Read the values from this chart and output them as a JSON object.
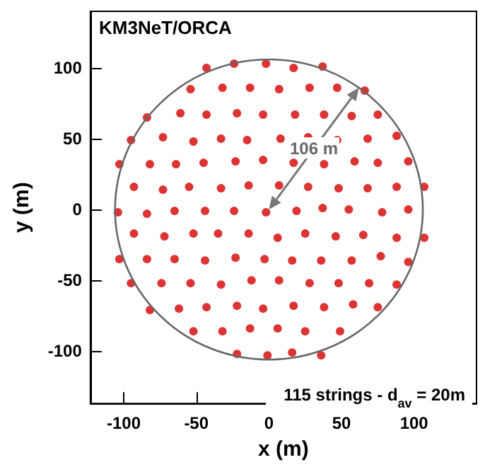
{
  "chart_data": {
    "type": "scatter",
    "title": "KM3NeT/ORCA",
    "xlabel": "x (m)",
    "ylabel": "y (m)",
    "annotations": [
      {
        "text": "106 m",
        "x": 31,
        "y": 43
      },
      "115 strings - d$_{av}$ = 20m"
    ],
    "x": [
      -43,
      -24,
      -2,
      17,
      37,
      -54,
      -32,
      -13,
      7,
      28,
      47,
      66,
      -84,
      -61,
      -43,
      -22,
      -4,
      18,
      38,
      57,
      75,
      -95,
      -73,
      -52,
      -33,
      -15,
      8,
      27,
      47,
      68,
      88,
      -103,
      -82,
      -64,
      -45,
      -23,
      -4,
      17,
      38,
      59,
      75,
      96,
      -93,
      -73,
      -55,
      -33,
      -14,
      7,
      27,
      48,
      68,
      88,
      107,
      -104,
      -84,
      -65,
      -44,
      -24,
      -2,
      19,
      37,
      55,
      78,
      96,
      -93,
      -72,
      -52,
      -35,
      -14,
      6,
      25,
      46,
      65,
      88,
      107,
      -103,
      -84,
      -65,
      -44,
      -23,
      -3,
      16,
      36,
      57,
      77,
      96,
      -95,
      -74,
      -54,
      -33,
      -12,
      7,
      28,
      48,
      69,
      88,
      -82,
      -62,
      -43,
      -22,
      -4,
      17,
      38,
      58,
      75,
      -52,
      -32,
      -13,
      6,
      25,
      49,
      -22,
      -1,
      16,
      36
    ],
    "values": [
      100,
      103,
      103,
      100,
      101,
      85,
      86,
      86,
      85,
      86,
      86,
      84,
      65,
      68,
      67,
      68,
      67,
      67,
      67,
      66,
      67,
      49,
      51,
      48,
      50,
      49,
      50,
      51,
      49,
      50,
      52,
      32,
      32,
      32,
      33,
      34,
      35,
      33,
      32,
      34,
      33,
      34,
      16,
      14,
      16,
      15,
      17,
      17,
      16,
      15,
      15,
      16,
      16,
      -2,
      -3,
      -1,
      -1,
      -1,
      -2,
      -1,
      1,
      0,
      -2,
      0,
      -17,
      -19,
      -17,
      -17,
      -17,
      -20,
      -17,
      -19,
      -18,
      -20,
      -20,
      -35,
      -35,
      -35,
      -36,
      -34,
      -35,
      -36,
      -36,
      -36,
      -33,
      -37,
      -52,
      -52,
      -52,
      -53,
      -50,
      -50,
      -52,
      -52,
      -52,
      -53,
      -71,
      -70,
      -69,
      -68,
      -70,
      -68,
      -69,
      -67,
      -69,
      -86,
      -86,
      -84,
      -84,
      -86,
      -86,
      -102,
      -103,
      -101,
      -103
    ],
    "color": "#d40000",
    "marker": "circle",
    "xlim": [
      -123,
      143
    ],
    "ylim": [
      -137,
      140
    ],
    "xticks": [
      -100,
      -50,
      0,
      50,
      100
    ],
    "yticks": [
      -100,
      -50,
      0,
      50,
      100
    ],
    "grid": false
  }
}
